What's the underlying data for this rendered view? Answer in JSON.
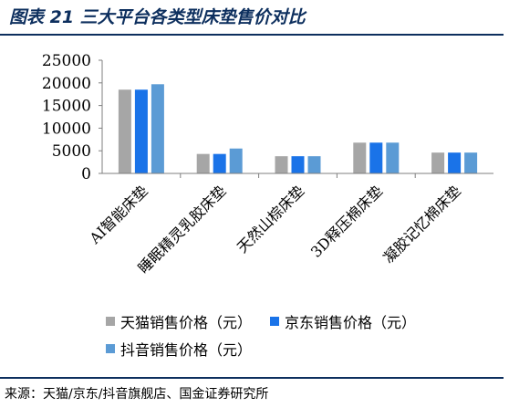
{
  "figure": {
    "title": "图表 21 三大平台各类型床垫售价对比",
    "source": "来源：天猫/京东/抖音旗舰店、国金证券研究所"
  },
  "colors": {
    "title": "#0d2f5e",
    "rule": "#0d2f5e"
  },
  "chart_data": {
    "type": "bar",
    "categories": [
      "AI智能床垫",
      "睡眠精灵乳胶床垫",
      "天然山棕床垫",
      "3D释压棉床垫",
      "凝胶记忆棉床垫"
    ],
    "series": [
      {
        "name": "天猫销售价格（元）",
        "color": "#a6a6a6",
        "values": [
          18500,
          4300,
          3800,
          6800,
          4600
        ]
      },
      {
        "name": "京东销售价格（元）",
        "color": "#1a73e8",
        "values": [
          18500,
          4300,
          3800,
          6800,
          4600
        ]
      },
      {
        "name": "抖音销售价格（元）",
        "color": "#5b9bd5",
        "values": [
          19700,
          5500,
          3800,
          6800,
          4600
        ]
      }
    ],
    "yticks": [
      0,
      5000,
      10000,
      15000,
      20000,
      25000
    ],
    "ylim": [
      0,
      25000
    ],
    "grid": false,
    "legend_position": "bottom-left",
    "xlabel": "",
    "ylabel": ""
  }
}
